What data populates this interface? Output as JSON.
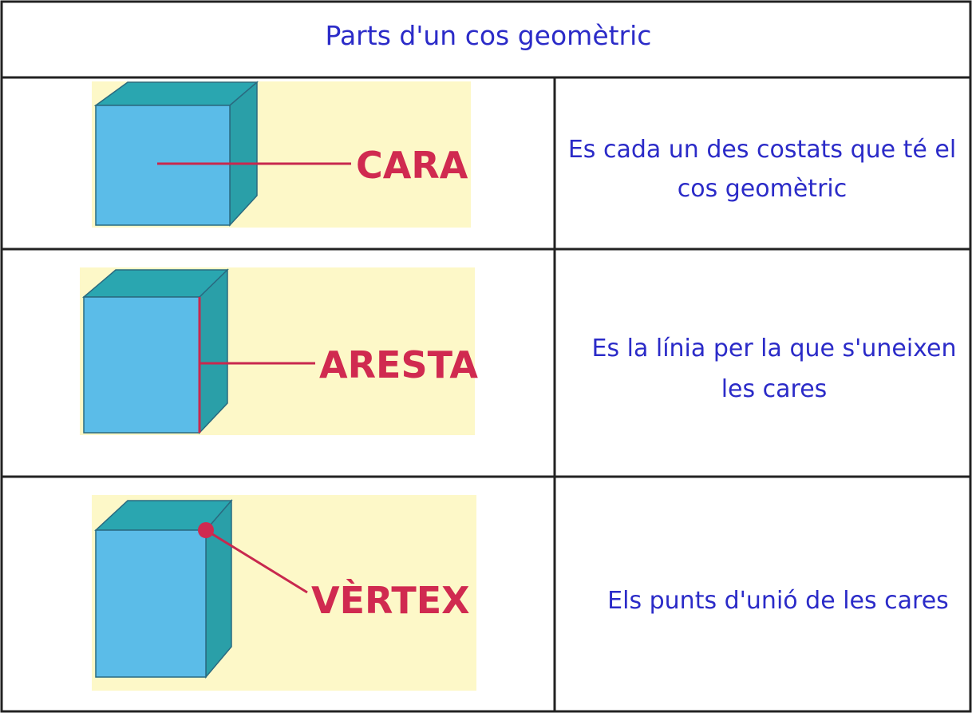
{
  "header": {
    "title": "Parts d'un cos geomètric"
  },
  "rows": [
    {
      "label": "CARA",
      "description": [
        "Es cada un des costats que té el",
        "cos geomètric"
      ]
    },
    {
      "label": "ARESTA",
      "description": [
        "Es la línia per la que s'uneixen",
        "les cares"
      ]
    },
    {
      "label": "VÈRTEX",
      "description": [
        "Els punts d'unió de les cares"
      ]
    }
  ]
}
